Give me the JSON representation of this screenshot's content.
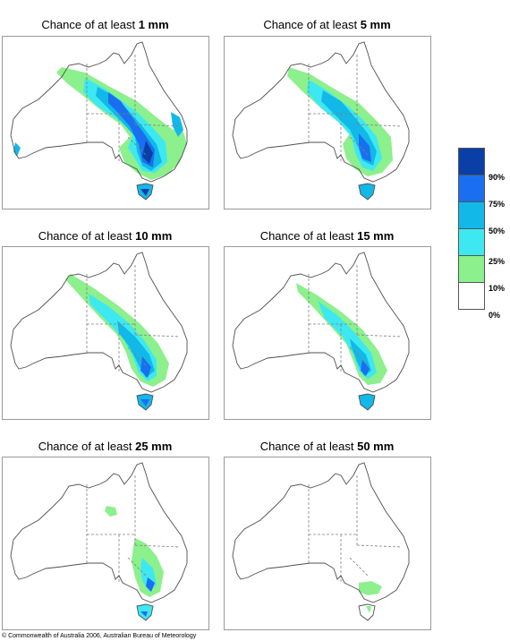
{
  "panels": [
    {
      "prefix": "Chance of at least ",
      "amount": "1 mm"
    },
    {
      "prefix": "Chance of at least ",
      "amount": "5 mm"
    },
    {
      "prefix": "Chance of at least ",
      "amount": "10 mm"
    },
    {
      "prefix": "Chance of at least ",
      "amount": "15 mm"
    },
    {
      "prefix": "Chance of at least ",
      "amount": "25 mm"
    },
    {
      "prefix": "Chance of at least ",
      "amount": "50 mm"
    }
  ],
  "legend": {
    "labels": [
      "90%",
      "75%",
      "50%",
      "25%",
      "10%",
      "0%"
    ],
    "colors": [
      "#0a3fa8",
      "#1a6ff0",
      "#12b8e8",
      "#3ee8f0",
      "#8cf08c",
      "#ffffff"
    ]
  },
  "copyright": "© Commonwealth of Australia 2006, Australian Bureau of Meteorology"
}
